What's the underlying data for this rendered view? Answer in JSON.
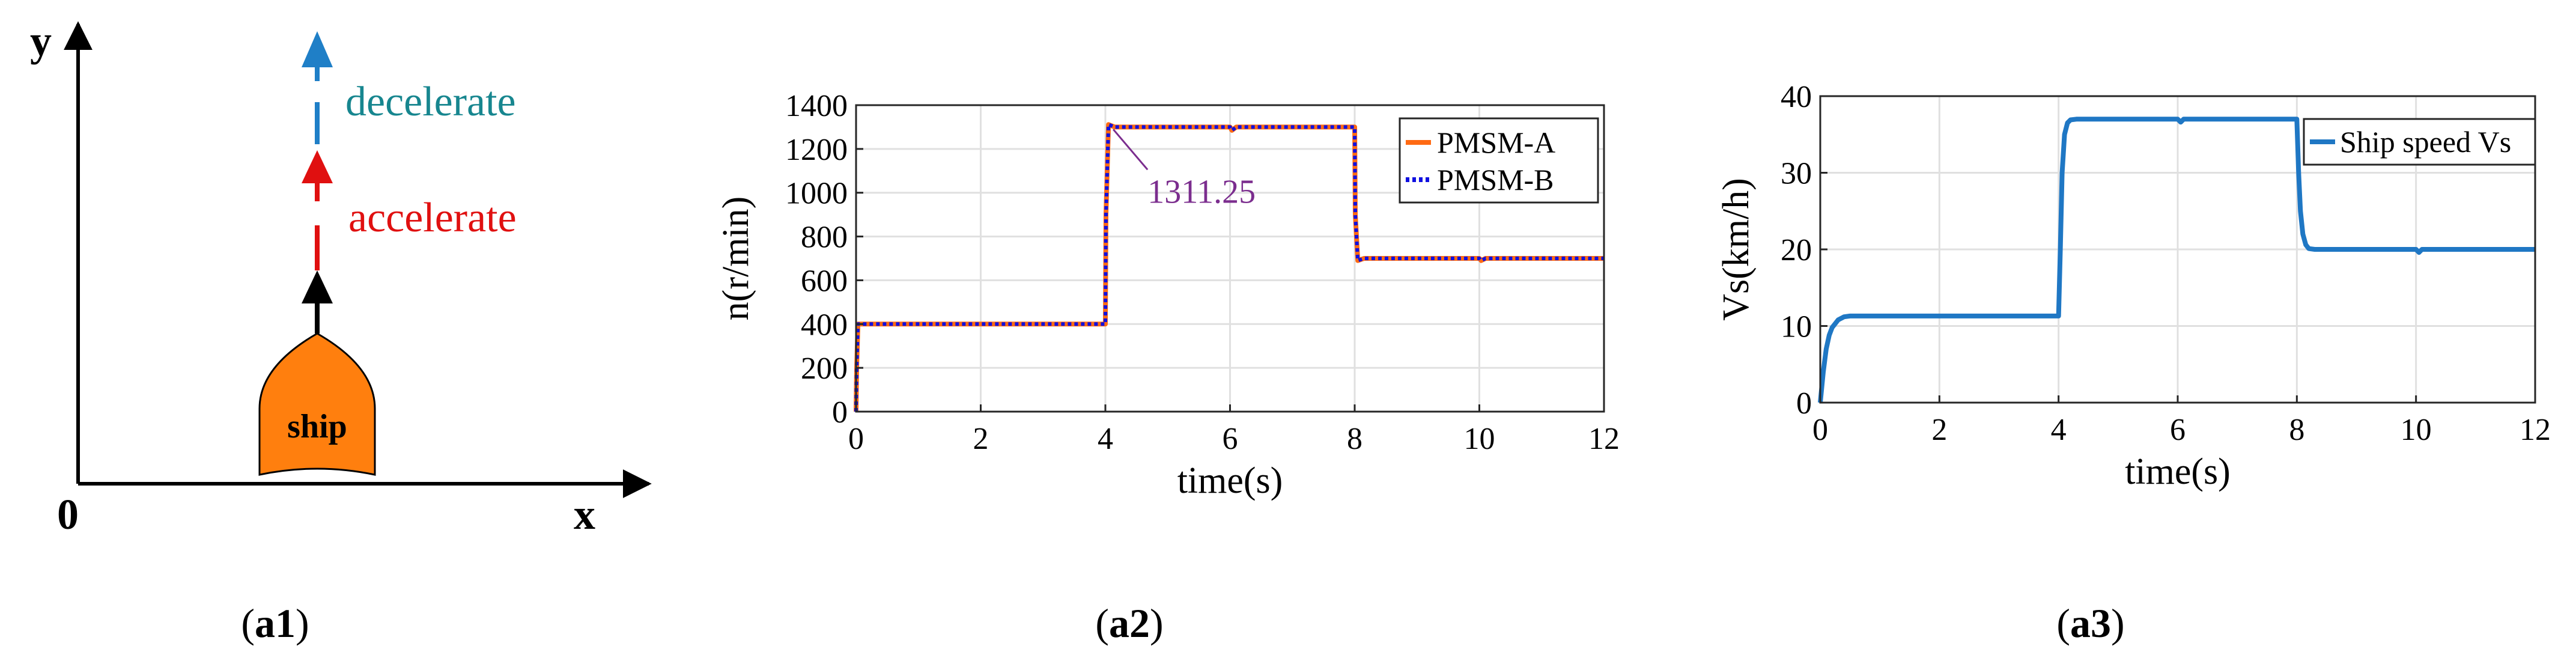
{
  "panel_a1": {
    "label_bold": "a1",
    "y_axis_label": "y",
    "x_axis_label": "x",
    "origin_label": "0",
    "ship_label": "ship",
    "decelerate_label": "decelerate",
    "accelerate_label": "accelerate",
    "colors": {
      "ship": "#ff7f0e",
      "decelerate": "#1f7fc7",
      "accelerate": "#e01010",
      "decelerate_text": "#17868f"
    }
  },
  "panel_a2": {
    "label_bold": "a2"
  },
  "panel_a3": {
    "label_bold": "a3"
  },
  "chart_data": [
    {
      "type": "line",
      "xlabel": "time(s)",
      "ylabel": "n(r/min)",
      "xlim": [
        0,
        12
      ],
      "ylim": [
        0,
        1400
      ],
      "xticks": [
        0,
        2,
        4,
        6,
        8,
        10,
        12
      ],
      "yticks": [
        0,
        200,
        400,
        600,
        800,
        1000,
        1200,
        1400
      ],
      "grid": true,
      "legend_position": "top-right",
      "annotation": {
        "text": "1311.25",
        "x": 4.05,
        "y": 1311.25,
        "color": "#7b2d8e"
      },
      "series": [
        {
          "name": "PMSM-A",
          "color": "#ff6a13",
          "style": "solid",
          "x": [
            0,
            0.01,
            0.03,
            0.05,
            4.0,
            4.01,
            4.05,
            4.15,
            6.0,
            6.03,
            6.1,
            8.0,
            8.01,
            8.05,
            8.15,
            10.0,
            10.03,
            10.1,
            12.0
          ],
          "y": [
            0,
            200,
            400,
            400,
            400,
            900,
            1311.25,
            1300,
            1300,
            1285,
            1300,
            1300,
            900,
            690,
            700,
            700,
            690,
            700,
            700
          ]
        },
        {
          "name": "PMSM-B",
          "color": "#1010e0",
          "style": "dotted",
          "x": [
            0,
            0.01,
            0.03,
            0.05,
            4.0,
            4.01,
            4.05,
            4.15,
            6.0,
            6.03,
            6.1,
            8.0,
            8.01,
            8.05,
            8.15,
            10.0,
            10.03,
            10.1,
            12.0
          ],
          "y": [
            0,
            200,
            400,
            400,
            400,
            900,
            1311.25,
            1300,
            1300,
            1285,
            1300,
            1300,
            900,
            690,
            700,
            700,
            690,
            700,
            700
          ]
        }
      ]
    },
    {
      "type": "line",
      "xlabel": "time(s)",
      "ylabel": "Vs(km/h)",
      "xlim": [
        0,
        12
      ],
      "ylim": [
        0,
        40
      ],
      "xticks": [
        0,
        2,
        4,
        6,
        8,
        10,
        12
      ],
      "yticks": [
        0,
        10,
        20,
        30,
        40
      ],
      "grid": true,
      "legend_position": "top-right",
      "series": [
        {
          "name": "Ship speed Vs",
          "color": "#1f77c4",
          "style": "solid",
          "x": [
            0,
            0.05,
            0.1,
            0.15,
            0.2,
            0.3,
            0.4,
            0.5,
            4.0,
            4.03,
            4.06,
            4.1,
            4.15,
            4.2,
            4.3,
            6.0,
            6.05,
            6.1,
            8.0,
            8.03,
            8.06,
            8.1,
            8.15,
            8.2,
            8.3,
            10.0,
            10.05,
            10.1,
            12.0
          ],
          "y": [
            0,
            4,
            7,
            8.8,
            9.8,
            10.8,
            11.2,
            11.3,
            11.3,
            20,
            30,
            35,
            36.5,
            36.9,
            37,
            37,
            36.6,
            37,
            37,
            30,
            25,
            22,
            20.6,
            20.1,
            20,
            20,
            19.6,
            20,
            20
          ]
        }
      ]
    }
  ]
}
